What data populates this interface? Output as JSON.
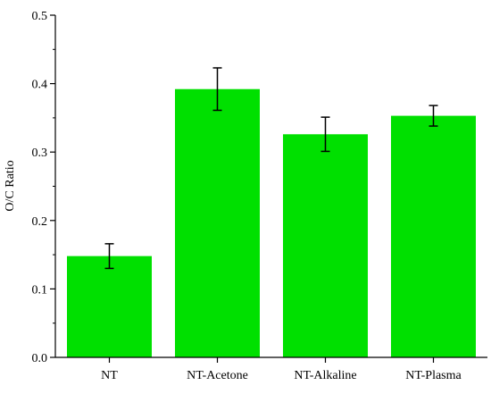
{
  "chart_data": {
    "type": "bar",
    "title": "",
    "xlabel": "",
    "ylabel": "O/C Ratio",
    "categories": [
      "NT",
      "NT-Acetone",
      "NT-Alkaline",
      "NT-Plasma"
    ],
    "values": [
      0.148,
      0.392,
      0.326,
      0.353
    ],
    "errors": [
      0.018,
      0.031,
      0.025,
      0.015
    ],
    "ylim": [
      0.0,
      0.5
    ],
    "yticks": [
      "0.0",
      "0.1",
      "0.2",
      "0.3",
      "0.4",
      "0.5"
    ],
    "grid": false,
    "legend": "none",
    "colors": {
      "bar": "#00e000",
      "error_bar": "#000000",
      "axis": "#000000"
    }
  }
}
